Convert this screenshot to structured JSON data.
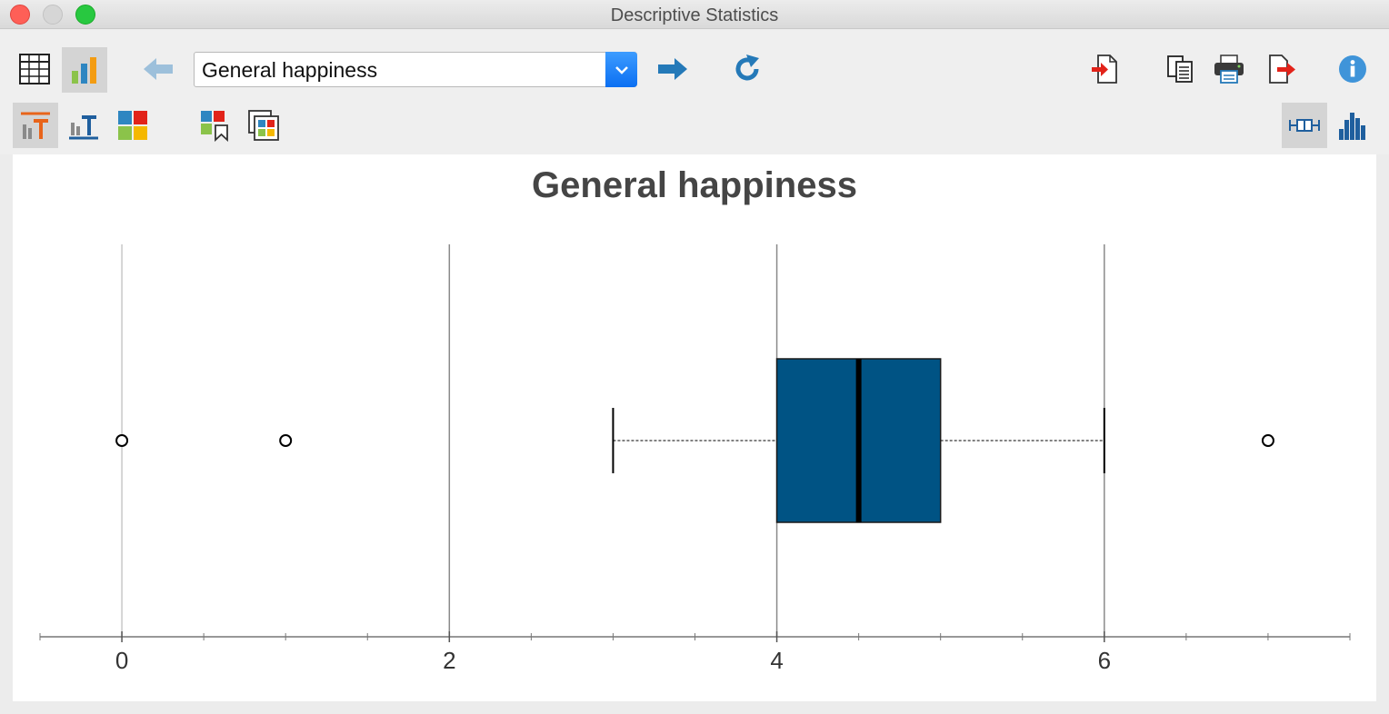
{
  "window": {
    "title": "Descriptive Statistics"
  },
  "toolbar": {
    "variable_select": {
      "selected": "General happiness"
    }
  },
  "chart_data": {
    "type": "boxplot",
    "title": "General happiness",
    "xlim": [
      -0.5,
      7.5
    ],
    "x_ticks": [
      0,
      2,
      4,
      6
    ],
    "minor_ticks": [
      -0.5,
      0.5,
      1,
      1.5,
      2.5,
      3,
      3.5,
      4.5,
      5,
      5.5,
      6.5,
      7,
      7.5
    ],
    "gridlines": [
      0,
      2,
      4,
      6
    ],
    "box": {
      "whisker_low": 3,
      "q1": 4,
      "median": 4.5,
      "q3": 5,
      "whisker_high": 6
    },
    "outliers": [
      0,
      1,
      7
    ],
    "box_color": "#005384"
  },
  "colors": {
    "accent_blue": "#1e7ac8",
    "export_red": "#e2231a",
    "select_blue": "#0b6ff2"
  }
}
